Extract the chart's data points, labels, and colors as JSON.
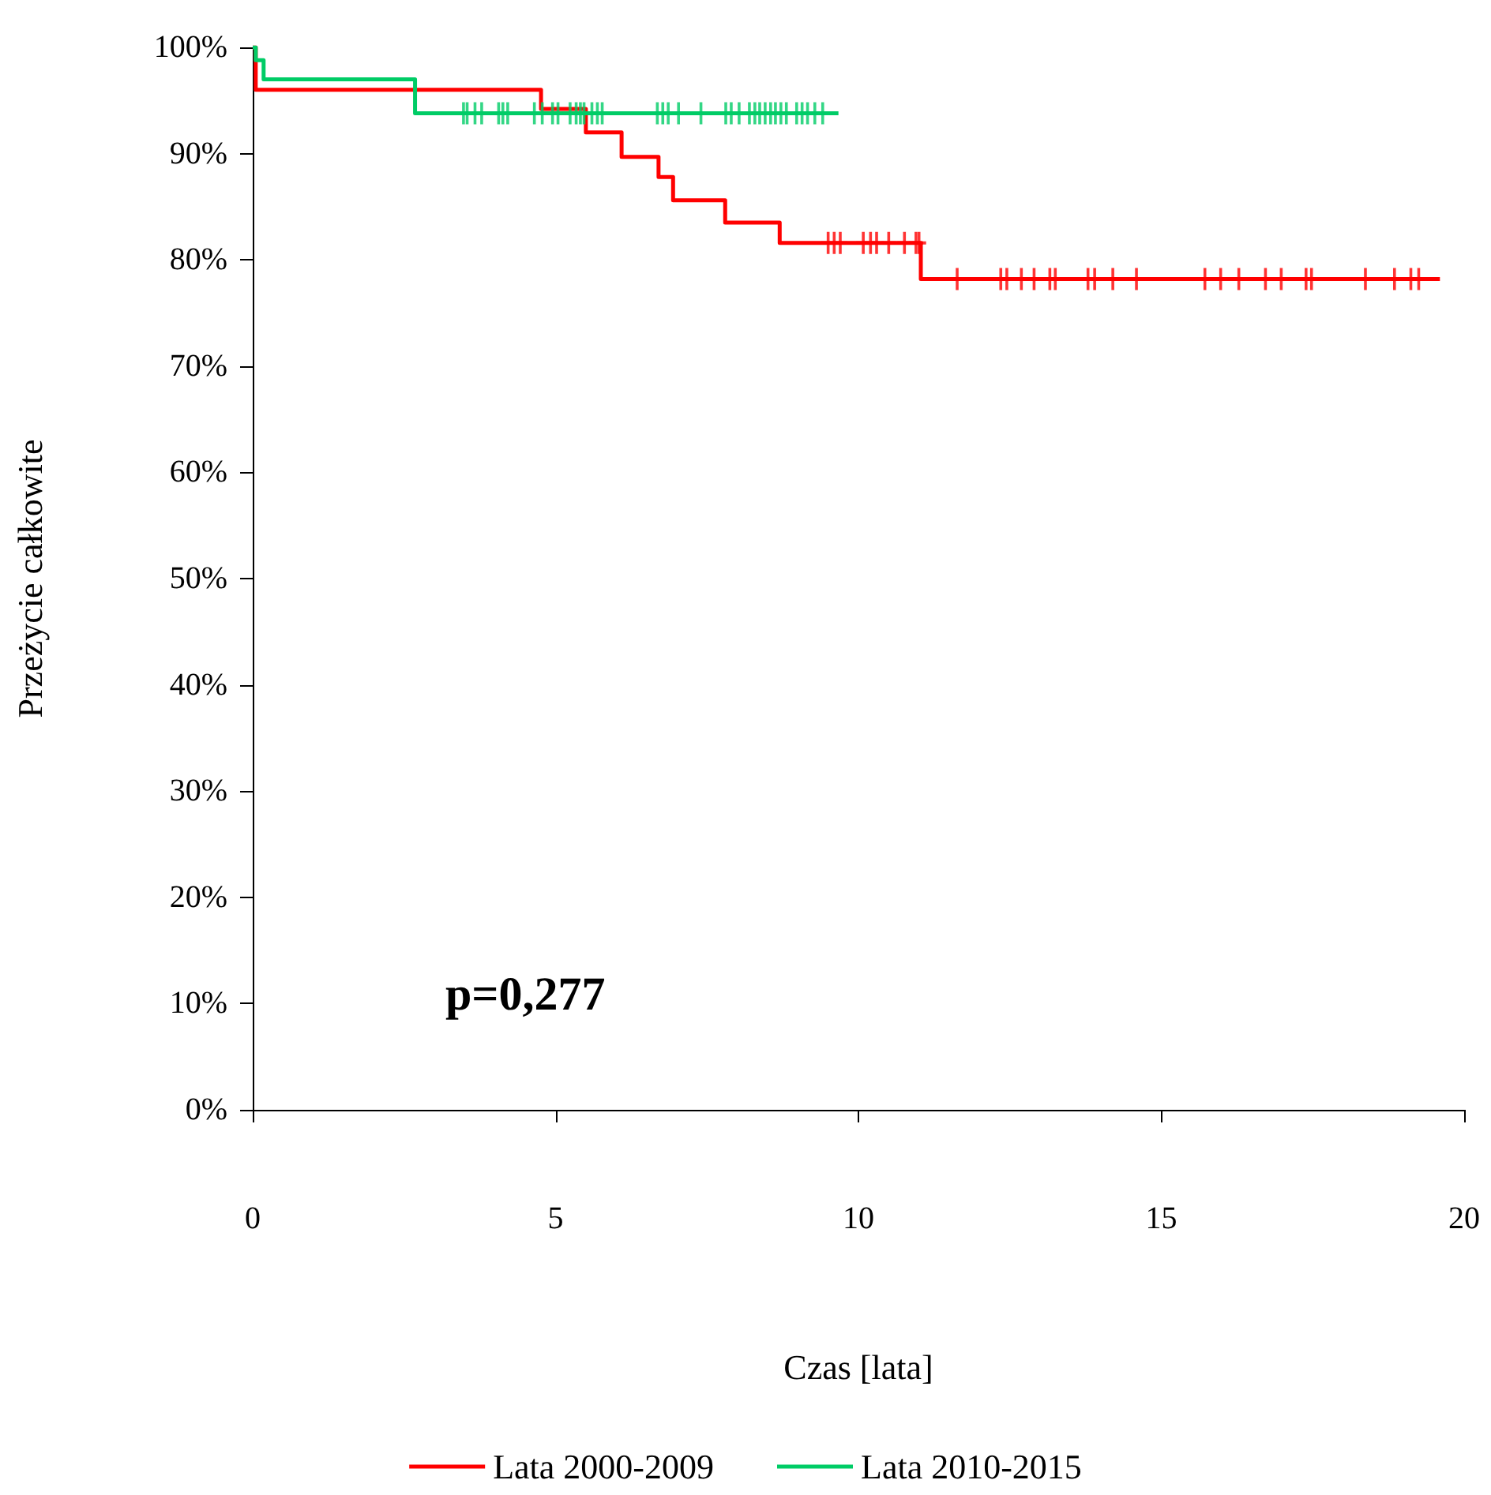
{
  "chart_data": {
    "type": "step",
    "xlabel": "Czas [lata]",
    "ylabel": "Przeżycie całkowite",
    "annotations": [
      "p=0,277"
    ],
    "xlim": [
      0,
      20
    ],
    "xticks": [
      0,
      5,
      10,
      15,
      20
    ],
    "ylim": [
      0,
      100
    ],
    "yticks": [
      {
        "value": 0,
        "label": "0%"
      },
      {
        "value": 10,
        "label": "10%"
      },
      {
        "value": 20,
        "label": "20%"
      },
      {
        "value": 30,
        "label": "30%"
      },
      {
        "value": 40,
        "label": "40%"
      },
      {
        "value": 50,
        "label": "50%"
      },
      {
        "value": 60,
        "label": "60%"
      },
      {
        "value": 70,
        "label": "70%"
      },
      {
        "value": 80,
        "label": "80%"
      },
      {
        "value": 90,
        "label": "90%"
      },
      {
        "value": 100,
        "label": "100%"
      }
    ],
    "grid": false,
    "legend": "bottom",
    "marker": "none",
    "line_style": "solid",
    "series": [
      {
        "name": "Lata 2000-2009",
        "color": "#ff0000",
        "x": [
          0,
          0.05,
          4.76,
          5.5,
          6.09,
          6.7,
          6.94,
          7.8,
          8.7,
          11.03,
          19.6
        ],
        "values": [
          100,
          96,
          94.2,
          92,
          89.7,
          87.8,
          85.6,
          83.5,
          81.6,
          78.2,
          78.2
        ]
      },
      {
        "name": "Lata 2010-2015",
        "color": "#00cc66",
        "x": [
          0,
          0.05,
          0.18,
          2.68,
          9.67
        ],
        "values": [
          100,
          98.8,
          97,
          93.8,
          93.8
        ]
      },
      {
        "type": "scatter",
        "marker": "cross",
        "color": "#ff0000",
        "x": [
          9.5,
          9.6,
          9.7,
          10.08,
          10.2,
          10.3,
          10.5,
          10.76,
          10.95,
          11.0,
          11.63,
          12.35,
          12.45,
          12.69,
          12.9,
          13.16,
          13.25,
          13.79,
          13.9,
          14.2,
          14.59,
          15.72,
          15.98,
          16.28,
          16.72,
          16.98,
          17.39,
          17.48,
          18.37,
          18.85,
          19.12,
          19.25
        ],
        "values": [
          81.6,
          81.6,
          81.6,
          81.6,
          81.6,
          81.6,
          81.6,
          81.6,
          81.6,
          81.6,
          78.2,
          78.2,
          78.2,
          78.2,
          78.2,
          78.2,
          78.2,
          78.2,
          78.2,
          78.2,
          78.2,
          78.2,
          78.2,
          78.2,
          78.2,
          78.2,
          78.2,
          78.2,
          78.2,
          78.2,
          78.2,
          78.2
        ]
      },
      {
        "type": "scatter",
        "marker": "cross",
        "color": "#00cc66",
        "x": [
          3.48,
          3.54,
          3.67,
          3.78,
          4.06,
          4.13,
          4.21,
          4.65,
          4.78,
          4.95,
          5.04,
          5.24,
          5.34,
          5.41,
          5.47,
          5.6,
          5.69,
          5.77,
          6.68,
          6.77,
          6.86,
          7.03,
          7.4,
          7.81,
          7.9,
          8.03,
          8.2,
          8.29,
          8.37,
          8.46,
          8.55,
          8.63,
          8.72,
          8.81,
          8.98,
          9.07,
          9.16,
          9.28,
          9.41
        ],
        "values": [
          93.8,
          93.8,
          93.8,
          93.8,
          93.8,
          93.8,
          93.8,
          93.8,
          93.8,
          93.8,
          93.8,
          93.8,
          93.8,
          93.8,
          93.8,
          93.8,
          93.8,
          93.8,
          93.8,
          93.8,
          93.8,
          93.8,
          93.8,
          93.8,
          93.8,
          93.8,
          93.8,
          93.8,
          93.8,
          93.8,
          93.8,
          93.8,
          93.8,
          93.8,
          93.8,
          93.8,
          93.8,
          93.8,
          93.8
        ]
      }
    ]
  }
}
